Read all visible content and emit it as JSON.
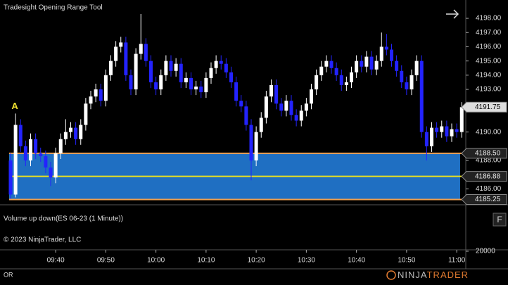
{
  "chart_data": {
    "type": "candlestick",
    "title": "Tradesight Opening Range Tool",
    "annotation": "A",
    "volume_panel_label": "Volume up down(ES 06-23 (1 Minute))",
    "copyright": "© 2023 NinjaTrader, LLC",
    "footer_left": "OR",
    "logo": [
      "NINJA",
      "TRADER"
    ],
    "panel_button": "F",
    "x": [
      "09:31",
      "09:32",
      "09:33",
      "09:34",
      "09:35",
      "09:36",
      "09:37",
      "09:38",
      "09:39",
      "09:40",
      "09:41",
      "09:42",
      "09:43",
      "09:44",
      "09:45",
      "09:46",
      "09:47",
      "09:48",
      "09:49",
      "09:50",
      "09:51",
      "09:52",
      "09:53",
      "09:54",
      "09:55",
      "09:56",
      "09:57",
      "09:58",
      "09:59",
      "10:00",
      "10:01",
      "10:02",
      "10:03",
      "10:04",
      "10:05",
      "10:06",
      "10:07",
      "10:08",
      "10:09",
      "10:10",
      "10:11",
      "10:12",
      "10:13",
      "10:14",
      "10:15",
      "10:16",
      "10:17",
      "10:18",
      "10:19",
      "10:20",
      "10:21",
      "10:22",
      "10:23",
      "10:24",
      "10:25",
      "10:26",
      "10:27",
      "10:28",
      "10:29",
      "10:30",
      "10:31",
      "10:32",
      "10:33",
      "10:34",
      "10:35",
      "10:36",
      "10:37",
      "10:38",
      "10:39",
      "10:40",
      "10:41",
      "10:42",
      "10:43",
      "10:44",
      "10:45",
      "10:46",
      "10:47",
      "10:48",
      "10:49",
      "10:50",
      "10:51",
      "10:52",
      "10:53",
      "10:54",
      "10:55",
      "10:56",
      "10:57",
      "10:58",
      "10:59",
      "11:00",
      "11:01"
    ],
    "open": [
      4188.0,
      4185.6,
      4190.5,
      4189.0,
      4188.0,
      4189.5,
      4188.5,
      4188.3,
      4187.5,
      4186.8,
      4188.5,
      4189.5,
      4190.0,
      4190.3,
      4189.5,
      4190.5,
      4192.0,
      4192.5,
      4193.0,
      4192.2,
      4194.0,
      4195.0,
      4196.0,
      4196.3,
      4194.0,
      4193.0,
      4195.5,
      4196.2,
      4195.0,
      4193.5,
      4193.0,
      4194.0,
      4195.0,
      4194.3,
      4194.8,
      4193.5,
      4193.8,
      4193.0,
      4193.2,
      4192.8,
      4193.8,
      4194.5,
      4195.0,
      4194.8,
      4194.2,
      4193.5,
      4192.2,
      4191.8,
      4190.5,
      4188.0,
      4190.0,
      4191.0,
      4192.5,
      4193.3,
      4192.0,
      4191.5,
      4192.2,
      4191.2,
      4190.8,
      4191.5,
      4192.0,
      4193.0,
      4194.0,
      4194.6,
      4195.0,
      4194.5,
      4194.0,
      4193.3,
      4193.5,
      4194.2,
      4195.0,
      4194.6,
      4195.3,
      4194.4,
      4195.0,
      4196.0,
      4195.8,
      4195.0,
      4194.3,
      4193.5,
      4193.0,
      4194.0,
      4195.0,
      4190.0,
      4189.0,
      4190.3,
      4190.0,
      4190.4,
      4189.7,
      4190.2,
      4190.0
    ],
    "high": [
      4188.5,
      4191.3,
      4190.9,
      4189.4,
      4189.9,
      4189.9,
      4188.9,
      4188.7,
      4187.9,
      4188.9,
      4189.9,
      4190.9,
      4190.7,
      4190.7,
      4190.9,
      4192.4,
      4192.9,
      4193.4,
      4193.4,
      4194.4,
      4195.4,
      4196.4,
      4196.7,
      4196.7,
      4194.4,
      4195.9,
      4198.3,
      4196.6,
      4195.4,
      4193.9,
      4194.4,
      4195.4,
      4195.4,
      4195.2,
      4195.2,
      4194.2,
      4194.2,
      4193.6,
      4193.6,
      4194.2,
      4194.9,
      4195.4,
      4195.4,
      4195.2,
      4194.6,
      4193.9,
      4192.6,
      4192.2,
      4190.9,
      4190.4,
      4191.4,
      4192.9,
      4193.7,
      4193.7,
      4192.4,
      4192.6,
      4192.6,
      4191.6,
      4191.9,
      4192.4,
      4193.4,
      4194.4,
      4195.0,
      4195.4,
      4195.4,
      4194.9,
      4194.4,
      4193.9,
      4194.6,
      4195.4,
      4195.4,
      4195.7,
      4195.7,
      4195.4,
      4197.0,
      4196.9,
      4196.2,
      4195.4,
      4194.7,
      4193.9,
      4194.4,
      4195.4,
      4195.4,
      4190.4,
      4190.7,
      4190.7,
      4190.8,
      4190.8,
      4190.6,
      4190.6,
      4192.1
    ],
    "low": [
      4185.3,
      4185.4,
      4188.6,
      4187.6,
      4187.6,
      4188.1,
      4187.9,
      4187.1,
      4186.2,
      4186.4,
      4188.1,
      4189.1,
      4189.6,
      4189.1,
      4189.1,
      4190.1,
      4191.6,
      4192.1,
      4191.8,
      4191.8,
      4193.6,
      4194.6,
      4195.6,
      4193.6,
      4192.6,
      4192.6,
      4195.1,
      4194.6,
      4193.1,
      4192.6,
      4192.6,
      4193.6,
      4193.9,
      4193.9,
      4193.1,
      4193.1,
      4192.6,
      4192.6,
      4192.4,
      4192.4,
      4193.4,
      4194.1,
      4194.4,
      4193.8,
      4193.1,
      4191.8,
      4191.4,
      4190.1,
      4186.6,
      4187.6,
      4189.6,
      4190.6,
      4192.1,
      4191.6,
      4191.1,
      4191.1,
      4190.8,
      4190.4,
      4190.4,
      4191.1,
      4191.6,
      4192.6,
      4193.6,
      4194.2,
      4194.1,
      4193.6,
      4192.9,
      4192.9,
      4193.1,
      4193.8,
      4194.2,
      4194.2,
      4194.0,
      4194.0,
      4194.6,
      4195.4,
      4194.6,
      4193.9,
      4193.1,
      4192.6,
      4192.6,
      4193.6,
      4189.6,
      4188.0,
      4188.6,
      4189.6,
      4189.6,
      4189.3,
      4189.3,
      4189.6,
      4189.6
    ],
    "close": [
      4185.6,
      4190.5,
      4189.0,
      4188.0,
      4189.5,
      4188.5,
      4188.3,
      4187.5,
      4186.8,
      4188.5,
      4189.5,
      4190.0,
      4190.3,
      4189.5,
      4190.5,
      4192.0,
      4192.5,
      4193.0,
      4192.2,
      4194.0,
      4195.0,
      4196.0,
      4196.3,
      4194.0,
      4193.0,
      4195.5,
      4196.2,
      4195.0,
      4193.5,
      4193.0,
      4194.0,
      4195.0,
      4194.3,
      4194.8,
      4193.5,
      4193.8,
      4193.0,
      4193.2,
      4192.8,
      4193.8,
      4194.5,
      4195.0,
      4194.8,
      4194.2,
      4193.5,
      4192.2,
      4191.8,
      4190.5,
      4188.0,
      4190.0,
      4191.0,
      4192.5,
      4193.3,
      4192.0,
      4191.5,
      4192.2,
      4191.2,
      4190.8,
      4191.5,
      4192.0,
      4193.0,
      4194.0,
      4194.6,
      4195.0,
      4194.5,
      4194.0,
      4193.3,
      4193.5,
      4194.2,
      4195.0,
      4194.6,
      4195.3,
      4194.4,
      4195.0,
      4196.0,
      4195.8,
      4195.0,
      4194.3,
      4193.5,
      4193.0,
      4194.0,
      4195.0,
      4190.0,
      4189.0,
      4190.3,
      4190.0,
      4190.4,
      4189.7,
      4190.2,
      4190.0,
      4191.75
    ],
    "up_color": "#ffffff",
    "down_color": "#2323ff",
    "xticks": [
      "09:40",
      "09:50",
      "10:00",
      "10:10",
      "10:20",
      "10:30",
      "10:40",
      "10:50",
      "11:00"
    ],
    "ylim": [
      4184.93,
      4199.29
    ],
    "yticks": [
      {
        "value": 4198,
        "label": "4198.00"
      },
      {
        "value": 4197,
        "label": "4197.00"
      },
      {
        "value": 4196,
        "label": "4196.00"
      },
      {
        "value": 4195,
        "label": "4195.00"
      },
      {
        "value": 4194,
        "label": "4194.00"
      },
      {
        "value": 4193,
        "label": "4193.00"
      },
      {
        "value": 4190,
        "label": "4190.00"
      },
      {
        "value": 4188,
        "label": "4188.00"
      },
      {
        "value": 4186,
        "label": "4186.00"
      }
    ],
    "range_fill": "#1f6fc2",
    "levels": [
      {
        "value": 4188.5,
        "label": "4188.50",
        "color": "#f0a050"
      },
      {
        "value": 4186.88,
        "label": "4186.88",
        "color": "#e8e020"
      },
      {
        "value": 4185.25,
        "label": "4185.25",
        "color": "#f0a050"
      }
    ],
    "last_price": {
      "value": 4191.75,
      "label": "4191.75"
    },
    "volume_ylim": [
      20000,
      60000
    ],
    "volume_yticks": [
      20000
    ]
  }
}
